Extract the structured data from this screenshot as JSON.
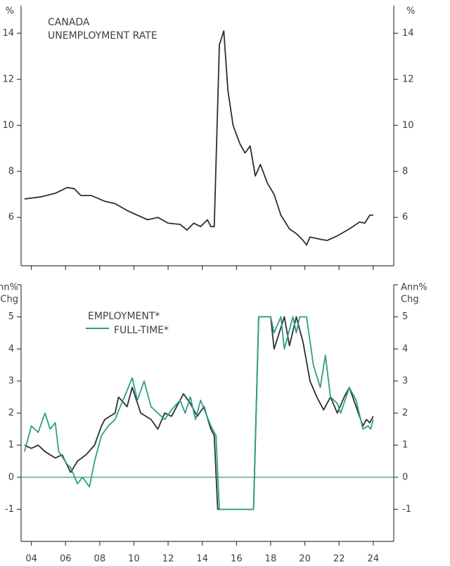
{
  "chart_data": [
    {
      "type": "line",
      "title": [
        "CANADA",
        "UNEMPLOYMENT RATE"
      ],
      "y_label": "%",
      "y2_label": "%",
      "xlim": [
        2003.4,
        2025.2
      ],
      "ylim": [
        3.9,
        15.2
      ],
      "yticks": [
        6,
        8,
        10,
        12,
        14
      ],
      "y2lim": [
        3.9,
        15.2
      ],
      "y2ticks": [
        6,
        8,
        10,
        12,
        14
      ],
      "x": [
        2003.6,
        2004.6,
        2005.4,
        2006.1,
        2006.5,
        2006.9,
        2007.5,
        2008.3,
        2008.9,
        2009.6,
        2010.2,
        2010.8,
        2011.4,
        2012.0,
        2012.7,
        2013.1,
        2013.5,
        2013.9,
        2014.3,
        2014.5,
        2014.7,
        2015.0,
        2015.26,
        2015.5,
        2015.8,
        2016.2,
        2016.5,
        2016.8,
        2017.1,
        2017.4,
        2017.8,
        2018.2,
        2018.6,
        2019.1,
        2019.5,
        2019.9,
        2020.1,
        2020.3,
        2020.9,
        2021.3,
        2021.9,
        2022.6,
        2023.2,
        2023.5,
        2023.8,
        2024.0
      ],
      "series": [
        {
          "color": "#2b2f33",
          "values": [
            6.8,
            6.9,
            7.05,
            7.3,
            7.25,
            6.95,
            6.95,
            6.7,
            6.6,
            6.3,
            6.1,
            5.9,
            6.0,
            5.75,
            5.7,
            5.45,
            5.75,
            5.6,
            5.9,
            5.6,
            5.6,
            13.5,
            14.1,
            11.5,
            10.0,
            9.2,
            8.8,
            9.1,
            7.8,
            8.3,
            7.5,
            7.0,
            6.1,
            5.5,
            5.3,
            5.0,
            4.8,
            5.15,
            5.05,
            5.0,
            5.2,
            5.5,
            5.8,
            5.75,
            6.1,
            6.1
          ]
        }
      ]
    },
    {
      "type": "line",
      "y_label": [
        "Ann%",
        "Chg"
      ],
      "y2_label": [
        "Ann%",
        "Chg"
      ],
      "xlim": [
        2003.4,
        2025.2
      ],
      "xticks": [
        {
          "value": 2004,
          "label": "04"
        },
        {
          "value": 2006,
          "label": "06"
        },
        {
          "value": 2008,
          "label": "08"
        },
        {
          "value": 2010,
          "label": "10"
        },
        {
          "value": 2012,
          "label": "12"
        },
        {
          "value": 2014,
          "label": "14"
        },
        {
          "value": 2016,
          "label": "16"
        },
        {
          "value": 2018,
          "label": "18"
        },
        {
          "value": 2020,
          "label": "20"
        },
        {
          "value": 2022,
          "label": "22"
        },
        {
          "value": 2024,
          "label": "24"
        }
      ],
      "ylim": [
        -2,
        6
      ],
      "yticks": [
        -1,
        0,
        1,
        2,
        3,
        4,
        5
      ],
      "y2lim": [
        -2,
        6
      ],
      "y2ticks": [
        -1,
        0,
        1,
        2,
        3,
        4,
        5
      ],
      "hline": 0,
      "series": [
        {
          "name": "EMPLOYMENT*",
          "color": "#2b2f33",
          "x": [
            2003.6,
            2004.0,
            2004.4,
            2004.8,
            2005.4,
            2005.8,
            2006.3,
            2006.7,
            2007.2,
            2007.7,
            2008.1,
            2008.3,
            2008.9,
            2009.1,
            2009.6,
            2009.9,
            2010.4,
            2011.0,
            2011.4,
            2011.8,
            2012.2,
            2012.9,
            2013.3,
            2013.7,
            2014.1,
            2014.5,
            2014.7,
            2014.9,
            2017.0,
            2017.3,
            2018.0,
            2018.2,
            2018.8,
            2019.1,
            2019.5,
            2019.9,
            2020.3,
            2020.7,
            2021.1,
            2021.5,
            2021.9,
            2022.3,
            2022.6,
            2023.0,
            2023.4,
            2023.6,
            2023.8,
            2024.0
          ],
          "values": [
            1.0,
            0.9,
            1.0,
            0.8,
            0.6,
            0.7,
            0.15,
            0.5,
            0.7,
            1.0,
            1.6,
            1.8,
            2.0,
            2.5,
            2.2,
            2.8,
            2.0,
            1.8,
            1.5,
            2.0,
            1.9,
            2.6,
            2.3,
            1.9,
            2.2,
            1.5,
            1.3,
            -1.0,
            -1.0,
            5.0,
            5.0,
            4.0,
            5.0,
            4.1,
            5.0,
            4.2,
            3.0,
            2.5,
            2.1,
            2.5,
            2.0,
            2.5,
            2.8,
            2.2,
            1.6,
            1.8,
            1.7,
            1.9
          ]
        },
        {
          "name": "FULL-TIME*",
          "color": "#2e9e86",
          "x": [
            2003.6,
            2004.0,
            2004.4,
            2004.8,
            2005.1,
            2005.4,
            2005.6,
            2006.1,
            2006.3,
            2006.7,
            2007.0,
            2007.4,
            2007.7,
            2008.1,
            2008.5,
            2008.9,
            2009.2,
            2009.6,
            2009.9,
            2010.2,
            2010.6,
            2011.0,
            2011.4,
            2011.8,
            2012.2,
            2012.7,
            2013.0,
            2013.3,
            2013.6,
            2013.9,
            2014.2,
            2014.5,
            2014.8,
            2015.0,
            2017.0,
            2017.3,
            2018.0,
            2018.2,
            2018.6,
            2018.8,
            2019.3,
            2019.5,
            2019.7,
            2020.1,
            2020.5,
            2020.9,
            2021.2,
            2021.5,
            2021.9,
            2022.1,
            2022.6,
            2023.0,
            2023.4,
            2023.7,
            2023.85,
            2024.0
          ],
          "values": [
            0.8,
            1.6,
            1.4,
            2.0,
            1.5,
            1.7,
            0.8,
            0.4,
            0.3,
            -0.2,
            0.0,
            -0.3,
            0.5,
            1.3,
            1.6,
            1.8,
            2.2,
            2.7,
            3.1,
            2.4,
            3.0,
            2.2,
            2.0,
            1.8,
            2.1,
            2.4,
            2.0,
            2.5,
            1.8,
            2.4,
            2.0,
            1.6,
            1.3,
            -1.0,
            -1.0,
            5.0,
            5.0,
            4.5,
            5.0,
            4.0,
            5.0,
            4.5,
            5.0,
            5.0,
            3.5,
            2.8,
            3.8,
            2.5,
            2.3,
            2.0,
            2.8,
            2.4,
            1.5,
            1.6,
            1.5,
            1.8
          ]
        }
      ]
    }
  ]
}
